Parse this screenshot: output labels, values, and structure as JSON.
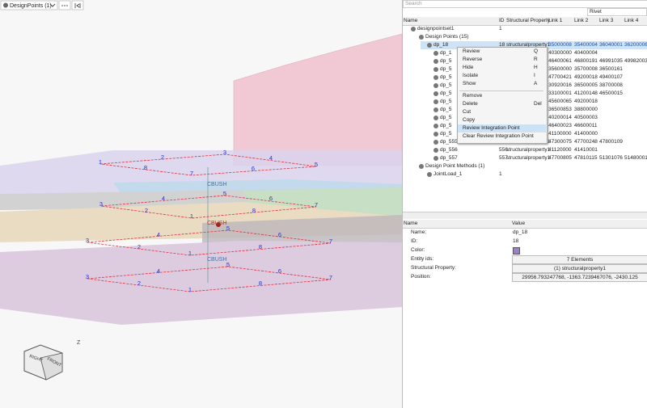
{
  "toolbar": {
    "tab": "DesignPoints (1)"
  },
  "viewport": {
    "labels": [
      "1",
      "2",
      "3",
      "4",
      "5",
      "6",
      "7",
      "8",
      "CBUSH",
      "5",
      "4",
      "6",
      "3",
      "7",
      "2",
      "8",
      "1",
      "CBUSH",
      "5",
      "4",
      "6",
      "3",
      "7",
      "2",
      "8",
      "1",
      "CBUSH",
      "5",
      "4",
      "6",
      "3",
      "7",
      "2",
      "8",
      "1"
    ],
    "axis": "Z",
    "cube": [
      "RIGHT",
      "FRONT"
    ]
  },
  "search": {
    "placeholder": "Search",
    "filter": "Rivet"
  },
  "tree": {
    "columns": [
      "Name",
      "ID",
      "Structural Property",
      "Link 1",
      "Link 2",
      "Link 3",
      "Link 4"
    ],
    "rows": [
      {
        "name": "designpointset1",
        "id": "1"
      },
      {
        "name": "Design Points (15)"
      },
      {
        "name": "dp_18",
        "id": "18",
        "property": "structuralproperty1",
        "links": [
          "35000008",
          "35400004",
          "36040001",
          "36200006"
        ]
      },
      {
        "name": "dp_1",
        "links": [
          "40300000",
          "40400004"
        ]
      },
      {
        "name": "dp_5",
        "links": [
          "46400061",
          "46800191",
          "46991035",
          "49982003"
        ]
      },
      {
        "name": "dp_5",
        "links": [
          "35600000",
          "35700008",
          "36500161"
        ]
      },
      {
        "name": "dp_5",
        "links": [
          "47700421",
          "49200018",
          "49400107"
        ]
      },
      {
        "name": "dp_5",
        "links": [
          "30920016",
          "36500005",
          "38700008"
        ]
      },
      {
        "name": "dp_5",
        "links": [
          "33100001",
          "41200148",
          "46500015"
        ]
      },
      {
        "name": "dp_5",
        "links": [
          "45600065",
          "49200018"
        ]
      },
      {
        "name": "dp_5",
        "links": [
          "36500853",
          "38800000"
        ]
      },
      {
        "name": "dp_5",
        "links": [
          "40200014",
          "40500003"
        ]
      },
      {
        "name": "dp_5",
        "links": [
          "46400023",
          "46600011"
        ]
      },
      {
        "name": "dp_5",
        "links": [
          "41100000",
          "41400000"
        ]
      },
      {
        "name": "dp_555",
        "id": "555",
        "property": "structuralproperty1",
        "links": [
          "47300075",
          "47700248",
          "47800109"
        ]
      },
      {
        "name": "dp_556",
        "id": "556",
        "property": "structuralproperty1",
        "links": [
          "41120000",
          "41410001"
        ]
      },
      {
        "name": "dp_557",
        "id": "557",
        "property": "structuralproperty1",
        "links": [
          "47700805",
          "47810115",
          "51301076",
          "51480001"
        ]
      },
      {
        "name": "Design Point Methods (1)"
      },
      {
        "name": "JointLoad_1",
        "id": "1"
      }
    ]
  },
  "context_menu": [
    {
      "label": "Review",
      "key": "Q"
    },
    {
      "label": "Reverse",
      "key": "R"
    },
    {
      "label": "Hide",
      "key": "H"
    },
    {
      "label": "Isolate",
      "key": "I"
    },
    {
      "label": "Show",
      "key": "A"
    },
    {
      "label": "Remove"
    },
    {
      "label": "Delete",
      "key": "Del"
    },
    {
      "label": "Cut"
    },
    {
      "label": "Copy"
    },
    {
      "label": "Review Integration Point"
    },
    {
      "label": "Clear Review Integration Point"
    }
  ],
  "properties": {
    "columns": [
      "Name",
      "Value"
    ],
    "rows": [
      {
        "label": "Name:",
        "value": "dp_18"
      },
      {
        "label": "ID:",
        "value": "18"
      },
      {
        "label": "Color:"
      },
      {
        "label": "Entity ids:",
        "value": "7 Elements"
      },
      {
        "label": "Structural Property:",
        "value": "(1) structuralproperty1"
      },
      {
        "label": "Position:",
        "value": "29956.793247768, -1363.7239467076, -2430.125"
      }
    ]
  }
}
